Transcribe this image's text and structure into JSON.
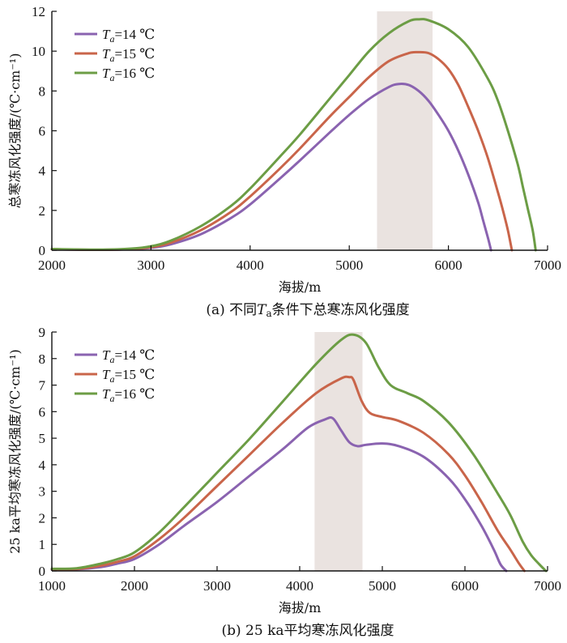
{
  "chart_data": [
    {
      "type": "line",
      "caption": "(a) 不同Tₐ条件下总寒冻风化强度",
      "caption_prefix": "(a) 不同",
      "caption_var": "T",
      "caption_sub": "a",
      "caption_suffix": "条件下总寒冻风化强度",
      "xlabel": "海拔/m",
      "ylabel": "总寒冻风化强度/(℃·cm⁻¹)",
      "xlim": [
        2000,
        7000
      ],
      "ylim": [
        0,
        12
      ],
      "xticks": [
        2000,
        3000,
        4000,
        5000,
        6000,
        7000
      ],
      "yticks": [
        0,
        2,
        4,
        6,
        8,
        10,
        12
      ],
      "highlight_band": [
        5280,
        5840
      ],
      "legend_position": "top-left",
      "series": [
        {
          "name": "Ta=14 ℃",
          "legend_var": "T",
          "legend_sub": "a",
          "legend_rest": "=14 ℃",
          "color": "#8a63b0",
          "x": [
            2000,
            2500,
            2800,
            3000,
            3200,
            3500,
            3800,
            4000,
            4300,
            4500,
            4800,
            5000,
            5200,
            5400,
            5500,
            5600,
            5700,
            5800,
            5900,
            6000,
            6100,
            6200,
            6300,
            6350,
            6400,
            6430
          ],
          "y": [
            0.05,
            0.02,
            0.05,
            0.12,
            0.3,
            0.8,
            1.6,
            2.3,
            3.6,
            4.5,
            5.9,
            6.8,
            7.6,
            8.2,
            8.35,
            8.3,
            8.0,
            7.5,
            6.8,
            6.0,
            5.0,
            3.8,
            2.4,
            1.5,
            0.6,
            0
          ]
        },
        {
          "name": "Ta=15 ℃",
          "legend_var": "T",
          "legend_sub": "a",
          "legend_rest": "=15 ℃",
          "color": "#c9654a",
          "x": [
            2000,
            2500,
            2800,
            3000,
            3200,
            3500,
            3800,
            4000,
            4300,
            4500,
            4800,
            5000,
            5200,
            5400,
            5600,
            5700,
            5800,
            5900,
            6000,
            6100,
            6200,
            6300,
            6400,
            6500,
            6550,
            6600,
            6640
          ],
          "y": [
            0.05,
            0.02,
            0.06,
            0.15,
            0.38,
            1.0,
            1.9,
            2.7,
            4.1,
            5.1,
            6.7,
            7.7,
            8.7,
            9.5,
            9.9,
            9.95,
            9.9,
            9.6,
            9.1,
            8.3,
            7.2,
            6.0,
            4.6,
            2.9,
            2.0,
            1.0,
            0
          ]
        },
        {
          "name": "Ta=16 ℃",
          "legend_var": "T",
          "legend_sub": "a",
          "legend_rest": "=16 ℃",
          "color": "#6c9d45",
          "x": [
            2000,
            2500,
            2800,
            3000,
            3200,
            3500,
            3800,
            4000,
            4300,
            4500,
            4800,
            5000,
            5200,
            5400,
            5600,
            5700,
            5800,
            6000,
            6200,
            6400,
            6500,
            6600,
            6700,
            6750,
            6800,
            6850,
            6880
          ],
          "y": [
            0.06,
            0.03,
            0.08,
            0.2,
            0.48,
            1.2,
            2.2,
            3.1,
            4.7,
            5.8,
            7.6,
            8.8,
            10.0,
            10.9,
            11.5,
            11.6,
            11.55,
            11.1,
            10.2,
            8.6,
            7.5,
            6.0,
            4.3,
            3.2,
            2.1,
            1.0,
            0
          ]
        }
      ]
    },
    {
      "type": "line",
      "caption": "(b) 25 ka平均寒冻风化强度",
      "caption_prefix": "(b) 25 ka平均寒冻风化强度",
      "caption_var": "",
      "caption_sub": "",
      "caption_suffix": "",
      "xlabel": "海拔/m",
      "ylabel": "25 ka平均寒冻风化强度/(℃·cm⁻¹)",
      "xlim": [
        1000,
        7000
      ],
      "ylim": [
        0,
        9
      ],
      "xticks": [
        1000,
        2000,
        3000,
        4000,
        5000,
        6000,
        7000
      ],
      "yticks": [
        0,
        1,
        2,
        3,
        4,
        5,
        6,
        7,
        8,
        9
      ],
      "highlight_band": [
        4180,
        4760
      ],
      "legend_position": "top-left",
      "series": [
        {
          "name": "Ta=14 ℃",
          "legend_var": "T",
          "legend_sub": "a",
          "legend_rest": "=14 ℃",
          "color": "#8a63b0",
          "x": [
            1000,
            1300,
            1600,
            1800,
            2000,
            2300,
            2600,
            3000,
            3400,
            3800,
            4100,
            4300,
            4400,
            4500,
            4600,
            4700,
            4800,
            5000,
            5200,
            5500,
            5800,
            6000,
            6200,
            6350,
            6430,
            6500
          ],
          "y": [
            0.05,
            0.06,
            0.15,
            0.28,
            0.45,
            1.0,
            1.7,
            2.6,
            3.6,
            4.6,
            5.4,
            5.7,
            5.75,
            5.3,
            4.85,
            4.7,
            4.75,
            4.8,
            4.7,
            4.3,
            3.5,
            2.7,
            1.7,
            0.8,
            0.25,
            0
          ]
        },
        {
          "name": "Ta=15 ℃",
          "legend_var": "T",
          "legend_sub": "a",
          "legend_rest": "=15 ℃",
          "color": "#c9654a",
          "x": [
            1000,
            1300,
            1600,
            1800,
            2000,
            2300,
            2600,
            3000,
            3400,
            3800,
            4200,
            4500,
            4600,
            4650,
            4750,
            4850,
            5000,
            5200,
            5500,
            5800,
            6000,
            6200,
            6400,
            6550,
            6650,
            6720
          ],
          "y": [
            0.06,
            0.07,
            0.2,
            0.35,
            0.55,
            1.2,
            2.0,
            3.2,
            4.4,
            5.6,
            6.7,
            7.25,
            7.3,
            7.2,
            6.4,
            5.95,
            5.8,
            5.65,
            5.2,
            4.4,
            3.6,
            2.6,
            1.5,
            0.8,
            0.3,
            0
          ]
        },
        {
          "name": "Ta=16 ℃",
          "legend_var": "T",
          "legend_sub": "a",
          "legend_rest": "=16 ℃",
          "color": "#6c9d45",
          "x": [
            1000,
            1300,
            1600,
            1800,
            2000,
            2300,
            2600,
            3000,
            3400,
            3800,
            4200,
            4500,
            4650,
            4800,
            4950,
            5100,
            5300,
            5500,
            5800,
            6100,
            6400,
            6550,
            6700,
            6800,
            6900,
            6980
          ],
          "y": [
            0.08,
            0.1,
            0.28,
            0.45,
            0.7,
            1.45,
            2.4,
            3.7,
            5.0,
            6.4,
            7.8,
            8.7,
            8.9,
            8.6,
            7.7,
            7.0,
            6.7,
            6.4,
            5.6,
            4.4,
            2.9,
            2.1,
            1.1,
            0.6,
            0.25,
            0
          ]
        }
      ]
    }
  ]
}
